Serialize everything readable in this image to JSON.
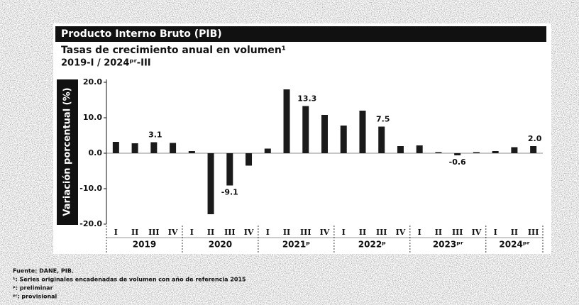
{
  "chart_data": {
    "type": "bar",
    "header": "Producto Interno Bruto (PIB)",
    "title": "Tasas de crecimiento anual en volumen¹",
    "subtitle": "2019-I / 2024ᵖʳ-III",
    "y_label": "Variación porcentual (%)",
    "groups": [
      {
        "name": "2019",
        "categories": [
          "I",
          "II",
          "III",
          "IV"
        ]
      },
      {
        "name": "2020",
        "categories": [
          "I",
          "II",
          "III",
          "IV"
        ]
      },
      {
        "name": "2021ᵖ",
        "categories": [
          "I",
          "II",
          "III",
          "IV"
        ]
      },
      {
        "name": "2022ᵖ",
        "categories": [
          "I",
          "II",
          "III",
          "IV"
        ]
      },
      {
        "name": "2023ᵖʳ",
        "categories": [
          "I",
          "II",
          "III",
          "IV"
        ]
      },
      {
        "name": "2024ᵖʳ",
        "categories": [
          "I",
          "II",
          "III"
        ]
      }
    ],
    "values": [
      3.2,
      2.8,
      3.1,
      2.9,
      0.6,
      -17.2,
      -9.1,
      -3.5,
      1.3,
      18.0,
      13.3,
      10.8,
      7.8,
      12.0,
      7.5,
      2.0,
      2.2,
      0.3,
      -0.6,
      0.3,
      0.6,
      1.7,
      2.0
    ],
    "value_labels": [
      null,
      null,
      "3.1",
      null,
      null,
      null,
      "-9.1",
      null,
      null,
      null,
      "13.3",
      null,
      null,
      null,
      "7.5",
      null,
      null,
      null,
      "-0.6",
      null,
      null,
      null,
      "2.0"
    ],
    "color": "#1a1a1a",
    "ylim": [
      -20,
      20
    ],
    "yticks": [
      {
        "value": -20,
        "label": "-20.0"
      },
      {
        "value": -10,
        "label": "-10.0"
      },
      {
        "value": 0,
        "label": "0.0"
      },
      {
        "value": 10,
        "label": "10.0"
      },
      {
        "value": 20,
        "label": "20.0"
      }
    ],
    "footnotes": [
      "Fuente: DANE, PIB.",
      "¹: Series originales encadenadas de volumen con año de referencia 2015",
      "ᵖ: preliminar",
      "ᵖʳ: provisional"
    ]
  }
}
